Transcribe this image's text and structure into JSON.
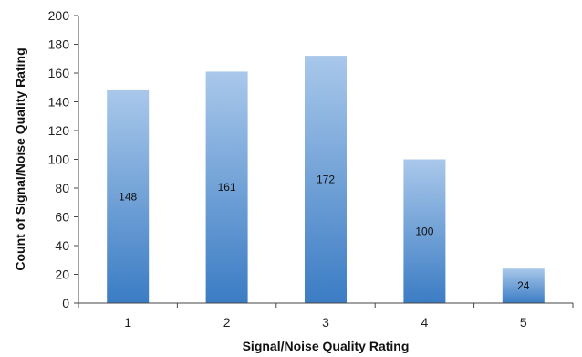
{
  "chart_data": {
    "type": "bar",
    "categories": [
      "1",
      "2",
      "3",
      "4",
      "5"
    ],
    "values": [
      148,
      161,
      172,
      100,
      24
    ],
    "data_labels": [
      "148",
      "161",
      "172",
      "100",
      "24"
    ],
    "title": "",
    "xlabel": "Signal/Noise Quality Rating",
    "ylabel": "Count of Signal/Noise Quality Rating",
    "ylim": [
      0,
      200
    ],
    "yticks": [
      0,
      20,
      40,
      60,
      80,
      100,
      120,
      140,
      160,
      180,
      200
    ],
    "ytick_labels": [
      "0",
      "20",
      "40",
      "60",
      "80",
      "100",
      "120",
      "140",
      "160",
      "180",
      "200"
    ],
    "grid": false,
    "legend": "none",
    "colors": {
      "bar_top": "#a9c8ea",
      "bar_bottom": "#3b7cc4"
    }
  }
}
